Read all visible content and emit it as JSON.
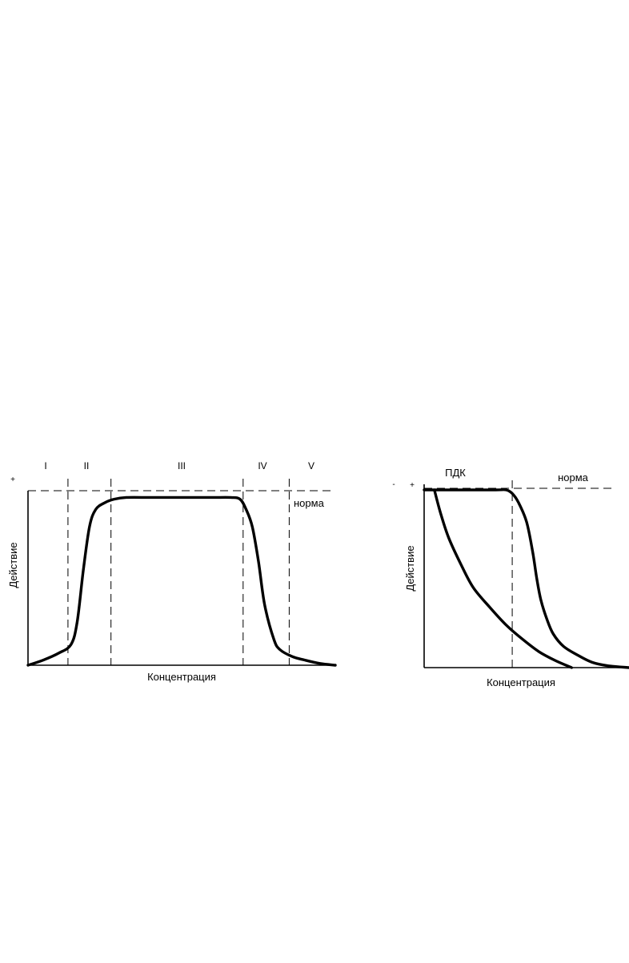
{
  "chart_data": [
    {
      "type": "line",
      "xlabel": "Концентрация",
      "ylabel": "Действие",
      "y_top_marker": "+",
      "reference_line_label": "норма",
      "zone_labels": [
        "I",
        "II",
        "III",
        "IV",
        "V"
      ],
      "zone_boundaries": [
        0.13,
        0.27,
        0.7,
        0.85
      ],
      "xlim": [
        0,
        1
      ],
      "ylim": [
        0,
        1
      ],
      "norm_level": 1.0,
      "series": [
        {
          "x": [
            0,
            0.05,
            0.1,
            0.14,
            0.16,
            0.18,
            0.2,
            0.22,
            0.25,
            0.28,
            0.32,
            0.4,
            0.5,
            0.6,
            0.66,
            0.69,
            0.71,
            0.73,
            0.75,
            0.77,
            0.8,
            0.82,
            0.86,
            0.9,
            0.95,
            1.0
          ],
          "y": [
            0,
            0.03,
            0.07,
            0.12,
            0.25,
            0.55,
            0.8,
            0.9,
            0.94,
            0.96,
            0.97,
            0.97,
            0.97,
            0.97,
            0.97,
            0.96,
            0.9,
            0.8,
            0.6,
            0.35,
            0.15,
            0.09,
            0.05,
            0.03,
            0.01,
            0.0
          ]
        }
      ]
    },
    {
      "type": "line",
      "xlabel": "Концентрация",
      "ylabel": "Действие",
      "y_top_marker": "+",
      "y_top_marker_minus": "-",
      "reference_line_label": "норма",
      "threshold_label": "ПДК",
      "threshold_x": 0.43,
      "xlim": [
        0,
        1
      ],
      "ylim": [
        0,
        1
      ],
      "norm_level": 1.0,
      "series": [
        {
          "x": [
            0,
            0.2,
            0.35,
            0.4,
            0.43,
            0.46,
            0.5,
            0.53,
            0.55,
            0.57,
            0.6,
            0.63,
            0.68,
            0.75,
            0.82,
            0.9,
            1.0
          ],
          "y": [
            1.0,
            1.0,
            1.0,
            1.0,
            0.98,
            0.93,
            0.82,
            0.65,
            0.5,
            0.38,
            0.27,
            0.19,
            0.12,
            0.07,
            0.03,
            0.01,
            0.0
          ]
        },
        {
          "x": [
            0.05,
            0.08,
            0.12,
            0.18,
            0.24,
            0.32,
            0.4,
            0.48,
            0.56,
            0.64,
            0.72
          ],
          "y": [
            1.0,
            0.87,
            0.73,
            0.58,
            0.45,
            0.34,
            0.24,
            0.16,
            0.09,
            0.04,
            0.0
          ]
        }
      ]
    }
  ]
}
